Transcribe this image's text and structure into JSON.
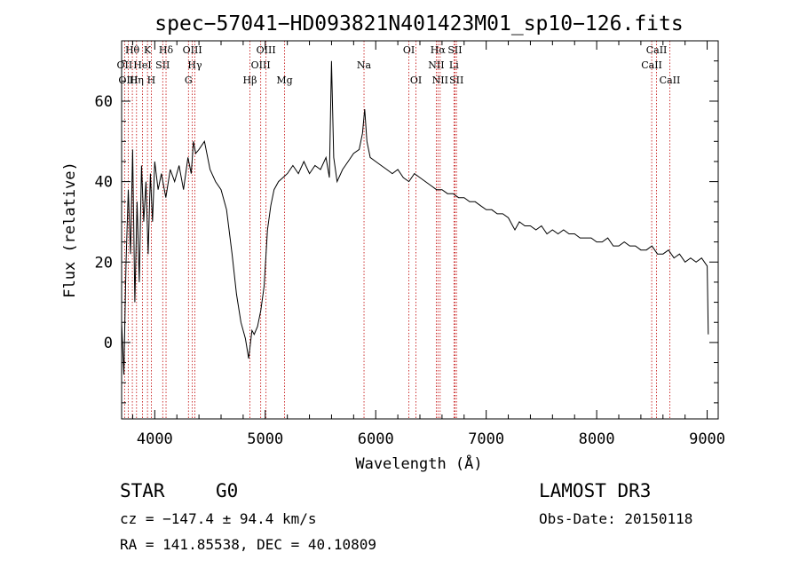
{
  "chart_data": {
    "type": "line",
    "title": "spec−57041−HD093821N401423M01_sp10−126.fits",
    "xlabel": "Wavelength (Å)",
    "ylabel": "Flux (relative)",
    "xlim": [
      3700,
      9100
    ],
    "ylim": [
      -19,
      75
    ],
    "xticks": [
      4000,
      5000,
      6000,
      7000,
      8000,
      9000
    ],
    "yticks": [
      0,
      20,
      40,
      60
    ],
    "grid": false,
    "series": [
      {
        "x": [
          3700,
          3720,
          3740,
          3760,
          3780,
          3800,
          3820,
          3840,
          3860,
          3880,
          3900,
          3920,
          3940,
          3960,
          3980,
          4000,
          4030,
          4060,
          4100,
          4140,
          4180,
          4220,
          4260,
          4300,
          4330,
          4350,
          4370,
          4400,
          4450,
          4500,
          4550,
          4600,
          4650,
          4700,
          4740,
          4780,
          4820,
          4850,
          4880,
          4900,
          4930,
          4960,
          4990,
          5020,
          5050,
          5080,
          5120,
          5160,
          5200,
          5250,
          5300,
          5350,
          5400,
          5450,
          5500,
          5550,
          5580,
          5600,
          5620,
          5650,
          5700,
          5750,
          5800,
          5850,
          5880,
          5900,
          5920,
          5950,
          6000,
          6050,
          6100,
          6150,
          6200,
          6250,
          6300,
          6350,
          6400,
          6450,
          6500,
          6550,
          6600,
          6650,
          6700,
          6750,
          6800,
          6850,
          6900,
          6950,
          7000,
          7050,
          7100,
          7150,
          7200,
          7240,
          7260,
          7300,
          7350,
          7400,
          7450,
          7500,
          7550,
          7600,
          7650,
          7700,
          7750,
          7800,
          7850,
          7900,
          7950,
          8000,
          8050,
          8100,
          8150,
          8200,
          8250,
          8300,
          8350,
          8400,
          8450,
          8500,
          8550,
          8600,
          8650,
          8700,
          8750,
          8800,
          8850,
          8900,
          8950,
          9000,
          9010
        ],
        "y": [
          5,
          -8,
          20,
          38,
          22,
          48,
          10,
          35,
          15,
          44,
          30,
          40,
          22,
          42,
          30,
          45,
          38,
          42,
          36,
          43,
          40,
          44,
          38,
          46,
          42,
          50,
          47,
          48,
          50,
          43,
          40,
          38,
          33,
          22,
          12,
          5,
          1,
          -4,
          3,
          2,
          4,
          8,
          14,
          28,
          34,
          38,
          40,
          41,
          42,
          44,
          42,
          45,
          42,
          44,
          43,
          46,
          41,
          70,
          46,
          40,
          43,
          45,
          47,
          48,
          52,
          58,
          50,
          46,
          45,
          44,
          43,
          42,
          43,
          41,
          40,
          42,
          41,
          40,
          39,
          38,
          38,
          37,
          37,
          36,
          36,
          35,
          35,
          34,
          33,
          33,
          32,
          32,
          31,
          29,
          28,
          30,
          29,
          29,
          28,
          29,
          27,
          28,
          27,
          28,
          27,
          27,
          26,
          26,
          26,
          25,
          25,
          26,
          24,
          24,
          25,
          24,
          24,
          23,
          23,
          24,
          22,
          22,
          23,
          21,
          22,
          20,
          21,
          20,
          21,
          19,
          2
        ]
      }
    ],
    "lines": [
      {
        "label": "OII",
        "x": 3727,
        "row": 1
      },
      {
        "label": "OIII",
        "x": 3760,
        "row": 2
      },
      {
        "label": "Hθ",
        "x": 3797,
        "row": 0
      },
      {
        "label": "Hη",
        "x": 3835,
        "row": 2
      },
      {
        "label": "HeI",
        "x": 3889,
        "row": 1
      },
      {
        "label": "K",
        "x": 3934,
        "row": 0
      },
      {
        "label": "H",
        "x": 3969,
        "row": 2
      },
      {
        "label": "SII",
        "x": 4072,
        "row": 1
      },
      {
        "label": "Hδ",
        "x": 4102,
        "row": 0
      },
      {
        "label": "G",
        "x": 4305,
        "row": 2
      },
      {
        "label": "OIII",
        "x": 4340,
        "row": 0
      },
      {
        "label": "Hγ",
        "x": 4363,
        "row": 1
      },
      {
        "label": "Hβ",
        "x": 4861,
        "row": 2
      },
      {
        "label": "OIII",
        "x": 4959,
        "row": 1
      },
      {
        "label": "OIII",
        "x": 5007,
        "row": 0
      },
      {
        "label": "Mg",
        "x": 5175,
        "row": 2
      },
      {
        "label": "Na",
        "x": 5894,
        "row": 1
      },
      {
        "label": "OI",
        "x": 6300,
        "row": 0
      },
      {
        "label": "OI",
        "x": 6364,
        "row": 2
      },
      {
        "label": "NII",
        "x": 6548,
        "row": 1
      },
      {
        "label": "Hα",
        "x": 6563,
        "row": 0
      },
      {
        "label": "NII",
        "x": 6583,
        "row": 2
      },
      {
        "label": "Li",
        "x": 6708,
        "row": 1
      },
      {
        "label": "SII",
        "x": 6717,
        "row": 0
      },
      {
        "label": "SII",
        "x": 6731,
        "row": 2
      },
      {
        "label": "CaII",
        "x": 8498,
        "row": 1
      },
      {
        "label": "CaII",
        "x": 8542,
        "row": 0
      },
      {
        "label": "CaII",
        "x": 8662,
        "row": 2
      }
    ],
    "line_color": "#c00000"
  },
  "info": {
    "class": "STAR",
    "subclass": "G0",
    "survey": "LAMOST DR3",
    "cz": "cz = −147.4 ± 94.4 km/s",
    "obs_date": "Obs-Date: 20150118",
    "coords": "RA = 141.85538, DEC =  40.10809"
  }
}
